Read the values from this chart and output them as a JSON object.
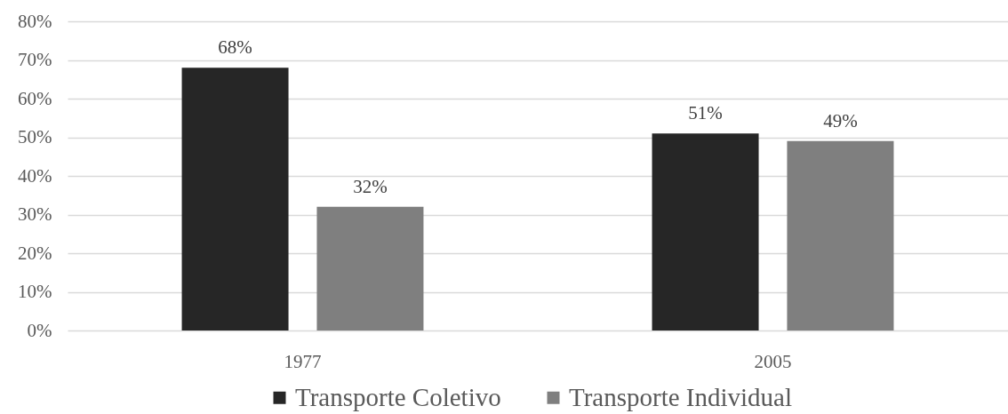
{
  "chart_data": {
    "type": "bar",
    "categories": [
      "1977",
      "2005"
    ],
    "series": [
      {
        "name": "Transporte Coletivo",
        "color": "#262626",
        "values": [
          68,
          51
        ],
        "value_labels": [
          "68%",
          "51%"
        ]
      },
      {
        "name": "Transporte Individual",
        "color": "#7f7f7f",
        "values": [
          32,
          49
        ],
        "value_labels": [
          "32%",
          "49%"
        ]
      }
    ],
    "ylim": [
      0,
      80
    ],
    "yticks": [
      {
        "value": 0,
        "label": "0%"
      },
      {
        "value": 10,
        "label": "10%"
      },
      {
        "value": 20,
        "label": "20%"
      },
      {
        "value": 30,
        "label": "30%"
      },
      {
        "value": 40,
        "label": "40%"
      },
      {
        "value": 50,
        "label": "50%"
      },
      {
        "value": 60,
        "label": "60%"
      },
      {
        "value": 70,
        "label": "70%"
      },
      {
        "value": 80,
        "label": "80%"
      }
    ],
    "grid": "y",
    "legend": "bottom"
  }
}
